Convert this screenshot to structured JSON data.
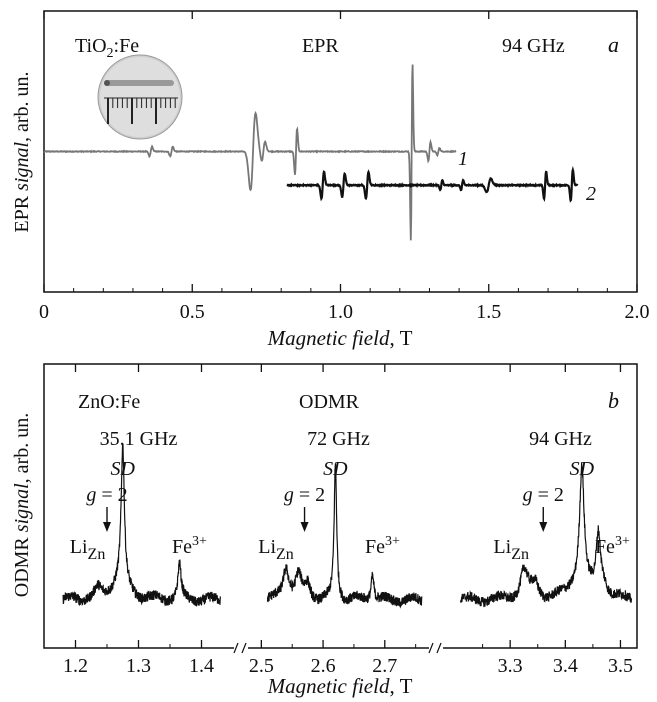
{
  "chart_data": [
    {
      "panel": "a",
      "type": "line",
      "title": "EPR",
      "sample": {
        "base": "TiO",
        "sub": "2",
        "rest": ":Fe"
      },
      "frequency": "94 GHz",
      "panel_label": "a",
      "xlabel": {
        "italic": "Magnetic field",
        "unit": ", T"
      },
      "ylabel": {
        "plain_start": "EPR ",
        "italic": "signal",
        "plain_end": ", arb. un."
      },
      "xlim": [
        0,
        2.0
      ],
      "ylim": [
        -1.0,
        1.0
      ],
      "xticks": [
        "0",
        "0.5",
        "1.0",
        "1.5",
        "2.0"
      ],
      "xtick_values": [
        0,
        0.5,
        1.0,
        1.5,
        2.0
      ],
      "series": [
        {
          "name": "1",
          "color": "#777777",
          "x_range": [
            0.0,
            1.39
          ],
          "baseline": 0.0,
          "features": [
            {
              "x": 0.36,
              "amp": 0.05,
              "w": 0.006
            },
            {
              "x": 0.43,
              "amp": 0.05,
              "w": 0.006
            },
            {
              "x": 0.705,
              "amp": 0.4,
              "w": 0.012
            },
            {
              "x": 0.74,
              "amp": 0.1,
              "w": 0.008
            },
            {
              "x": 0.85,
              "amp": 0.24,
              "w": 0.005
            },
            {
              "x": 1.24,
              "amp": 0.92,
              "w": 0.004
            },
            {
              "x": 1.3,
              "amp": 0.1,
              "w": 0.005
            },
            {
              "x": 1.33,
              "amp": 0.04,
              "w": 0.005
            }
          ]
        },
        {
          "name": "2",
          "color": "#111111",
          "x_range": [
            0.82,
            1.8
          ],
          "baseline": -0.24,
          "features": [
            {
              "x": 0.94,
              "amp": 0.14,
              "w": 0.006
            },
            {
              "x": 1.01,
              "amp": 0.12,
              "w": 0.006
            },
            {
              "x": 1.09,
              "amp": 0.14,
              "w": 0.006
            },
            {
              "x": 1.34,
              "amp": 0.05,
              "w": 0.005
            },
            {
              "x": 1.41,
              "amp": 0.05,
              "w": 0.005
            },
            {
              "x": 1.5,
              "amp": 0.07,
              "w": 0.01
            },
            {
              "x": 1.69,
              "amp": 0.14,
              "w": 0.005
            },
            {
              "x": 1.78,
              "amp": 0.16,
              "w": 0.005
            }
          ]
        }
      ]
    },
    {
      "panel": "b",
      "type": "line",
      "title": "ODMR",
      "sample": {
        "base": "ZnO",
        "rest": ":Fe"
      },
      "panel_label": "b",
      "xlabel": {
        "italic": "Magnetic field",
        "unit": ", T"
      },
      "ylabel": {
        "plain_start": "ODMR ",
        "italic": "signal",
        "plain_end": ", arb. un."
      },
      "segments": [
        {
          "frequency": "35.1 GHz",
          "xlim": [
            1.15,
            1.45
          ],
          "xticks": [
            "1.2",
            "1.3",
            "1.4"
          ],
          "xtick_values": [
            1.2,
            1.3,
            1.4
          ],
          "trace_range": [
            1.18,
            1.43
          ],
          "g2_x": 1.25,
          "li_x": 1.235,
          "sd_x": 1.275,
          "fe_x": 1.365,
          "peaks": [
            {
              "x": 1.275,
              "h": 0.93,
              "w": 0.003
            },
            {
              "x": 1.27,
              "h": 0.14,
              "w": 0.015
            },
            {
              "x": 1.235,
              "h": 0.06,
              "w": 0.006
            },
            {
              "x": 1.365,
              "h": 0.24,
              "w": 0.003
            }
          ]
        },
        {
          "frequency": "72 GHz",
          "xlim": [
            2.48,
            2.77
          ],
          "xticks": [
            "2.5",
            "2.6",
            "2.7"
          ],
          "xtick_values": [
            2.5,
            2.6,
            2.7
          ],
          "trace_range": [
            2.51,
            2.76
          ],
          "g2_x": 2.57,
          "li_x": 2.54,
          "sd_x": 2.62,
          "fe_x": 2.68,
          "peaks": [
            {
              "x": 2.62,
              "h": 0.93,
              "w": 0.0025
            },
            {
              "x": 2.54,
              "h": 0.22,
              "w": 0.006
            },
            {
              "x": 2.56,
              "h": 0.16,
              "w": 0.006
            },
            {
              "x": 2.575,
              "h": 0.1,
              "w": 0.005
            },
            {
              "x": 2.68,
              "h": 0.18,
              "w": 0.003
            }
          ]
        },
        {
          "frequency": "94 GHz",
          "xlim": [
            3.18,
            3.53
          ],
          "xticks": [
            "3.3",
            "3.4",
            "3.5"
          ],
          "xtick_values": [
            3.3,
            3.4,
            3.5
          ],
          "trace_range": [
            3.21,
            3.52
          ],
          "g2_x": 3.36,
          "li_x": 3.32,
          "sd_x": 3.43,
          "fe_x": 3.46,
          "peaks": [
            {
              "x": 3.43,
              "h": 0.8,
              "w": 0.005
            },
            {
              "x": 3.425,
              "h": 0.12,
              "w": 0.02
            },
            {
              "x": 3.325,
              "h": 0.2,
              "w": 0.008
            },
            {
              "x": 3.345,
              "h": 0.1,
              "w": 0.008
            },
            {
              "x": 3.46,
              "h": 0.4,
              "w": 0.005
            },
            {
              "x": 3.47,
              "h": 0.08,
              "w": 0.008
            }
          ]
        }
      ],
      "annotations": {
        "g2": "g = 2",
        "sd": "SD",
        "li_base": "Li",
        "li_sub": "Zn",
        "fe_base": "Fe",
        "fe_sup": "3+"
      }
    }
  ]
}
